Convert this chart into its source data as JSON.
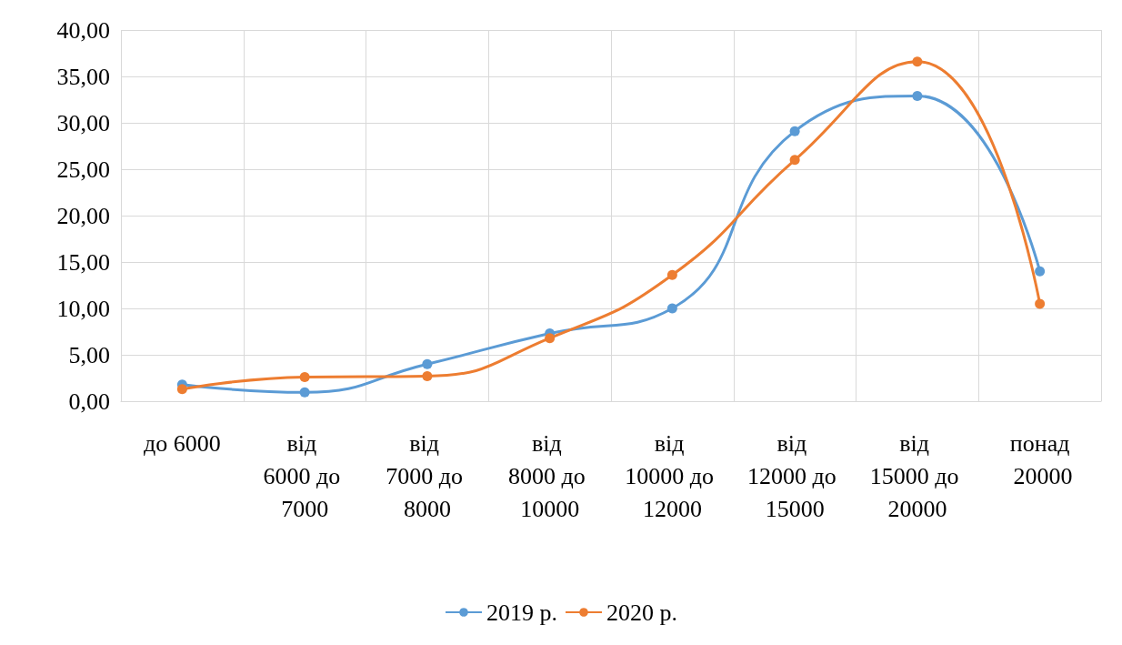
{
  "chart_data": {
    "type": "line",
    "categories": [
      "до 6000",
      "від 6000 до 7000",
      "від 7000 до 8000",
      "від 8000 до 10000",
      "від 10000 до 12000",
      "від 12000 до 15000",
      "від 15000 до 20000",
      "понад 20000"
    ],
    "series": [
      {
        "name": "2019 р.",
        "color": "#5b9bd5",
        "values": [
          1.8,
          0.95,
          4.0,
          7.3,
          10.0,
          29.1,
          32.9,
          14.0
        ]
      },
      {
        "name": "2020 р.",
        "color": "#ed7d31",
        "values": [
          1.3,
          2.6,
          2.7,
          6.8,
          13.6,
          26.0,
          36.6,
          10.5
        ]
      }
    ],
    "ylim": [
      0,
      40
    ],
    "yticks": [
      {
        "value": 0,
        "label": "0,00"
      },
      {
        "value": 5,
        "label": "5,00"
      },
      {
        "value": 10,
        "label": "10,00"
      },
      {
        "value": 15,
        "label": "15,00"
      },
      {
        "value": 20,
        "label": "20,00"
      },
      {
        "value": 25,
        "label": "25,00"
      },
      {
        "value": 30,
        "label": "30,00"
      },
      {
        "value": 35,
        "label": "35,00"
      },
      {
        "value": 40,
        "label": "40,00"
      }
    ],
    "grid": true,
    "legend": "bottom",
    "marker": "circle",
    "line_style": "solid"
  }
}
